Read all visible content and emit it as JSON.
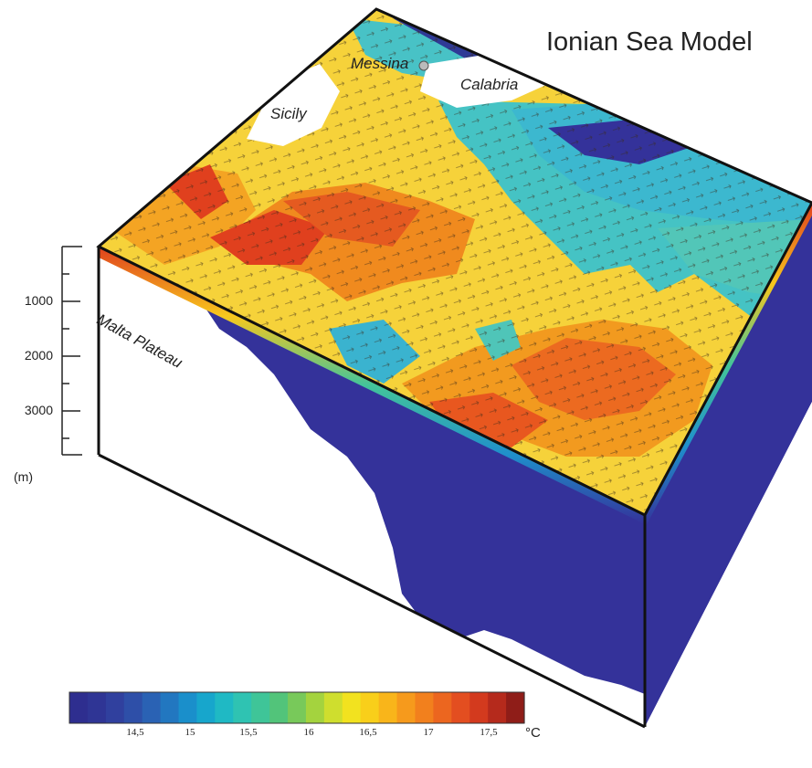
{
  "title": "Ionian Sea Model",
  "places": {
    "messina": "Messina",
    "calabria": "Calabria",
    "sicily": "Sicily",
    "malta_plateau": "Malta Plateau"
  },
  "depth_scale": {
    "ticks": [
      "1000",
      "2000",
      "3000"
    ],
    "unit": "(m)"
  },
  "colorbar": {
    "ticks": [
      "14,5",
      "15",
      "15,5",
      "16",
      "16,5",
      "17",
      "17,5"
    ],
    "unit": "°C",
    "colors": [
      "#2e2e8f",
      "#2f3595",
      "#30409e",
      "#2e4fa8",
      "#2a62b4",
      "#2277c0",
      "#1a8fcb",
      "#17a6cc",
      "#1fb9c4",
      "#2fc3b2",
      "#3fc598",
      "#52c47a",
      "#78c95a",
      "#a4d33e",
      "#cfde2e",
      "#f2e21f",
      "#f9cf1a",
      "#f9b51a",
      "#f69a1c",
      "#f2801d",
      "#ec661f",
      "#e34e20",
      "#d33a1e",
      "#b52a1c",
      "#8f1d18"
    ]
  },
  "colors": {
    "deep_water": "#34329a",
    "warm_core": "#e14a1f",
    "surface_yellow": "#f7d93a",
    "surface_cyan": "#3fc2c2"
  },
  "icons": [
    "city-marker-icon"
  ]
}
